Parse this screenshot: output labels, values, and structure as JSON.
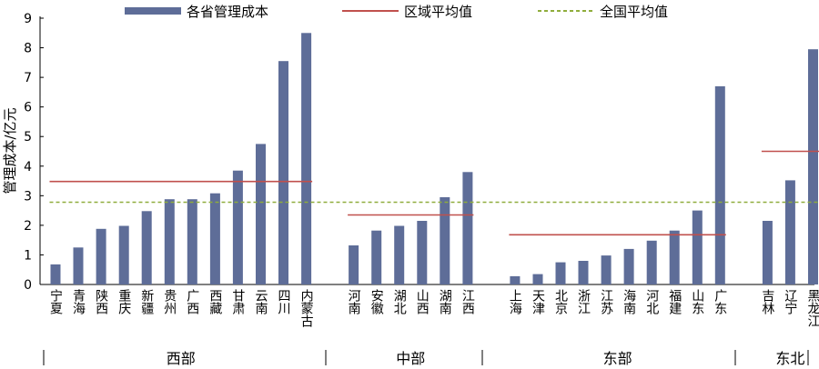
{
  "chart_data": {
    "type": "bar",
    "ylabel": "管理成本/亿元",
    "ylim": [
      0,
      9
    ],
    "yticks": [
      0,
      1,
      2,
      3,
      4,
      5,
      6,
      7,
      8,
      9
    ],
    "legend": {
      "placement": "top",
      "bar": "各省管理成本",
      "regional": "区域平均值",
      "national": "全国平均值"
    },
    "colors": {
      "bar": "#5e6d98",
      "regional": "#c0504d",
      "national": "#8fad3c"
    },
    "national_average": 2.78,
    "groups": [
      {
        "name": "西部",
        "average": 3.48,
        "categories": [
          "宁夏",
          "青海",
          "陕西",
          "重庆",
          "新疆",
          "贵州",
          "广西",
          "西藏",
          "甘肃",
          "云南",
          "四川",
          "内蒙古"
        ],
        "values": [
          0.68,
          1.25,
          1.88,
          1.98,
          2.48,
          2.88,
          2.88,
          3.08,
          3.85,
          4.75,
          7.55,
          8.5
        ]
      },
      {
        "name": "中部",
        "average": 2.35,
        "categories": [
          "河南",
          "安徽",
          "湖北",
          "山西",
          "湖南",
          "江西"
        ],
        "values": [
          1.32,
          1.82,
          1.98,
          2.15,
          2.95,
          3.8
        ]
      },
      {
        "name": "东部",
        "average": 1.68,
        "categories": [
          "上海",
          "天津",
          "北京",
          "浙江",
          "江苏",
          "海南",
          "河北",
          "福建",
          "山东",
          "广东"
        ],
        "values": [
          0.28,
          0.35,
          0.75,
          0.8,
          0.98,
          1.2,
          1.48,
          1.82,
          2.5,
          6.7
        ]
      },
      {
        "name": "东北",
        "average": 4.5,
        "categories": [
          "吉林",
          "辽宁",
          "黑龙江"
        ],
        "values": [
          2.15,
          3.52,
          7.95
        ]
      }
    ]
  }
}
